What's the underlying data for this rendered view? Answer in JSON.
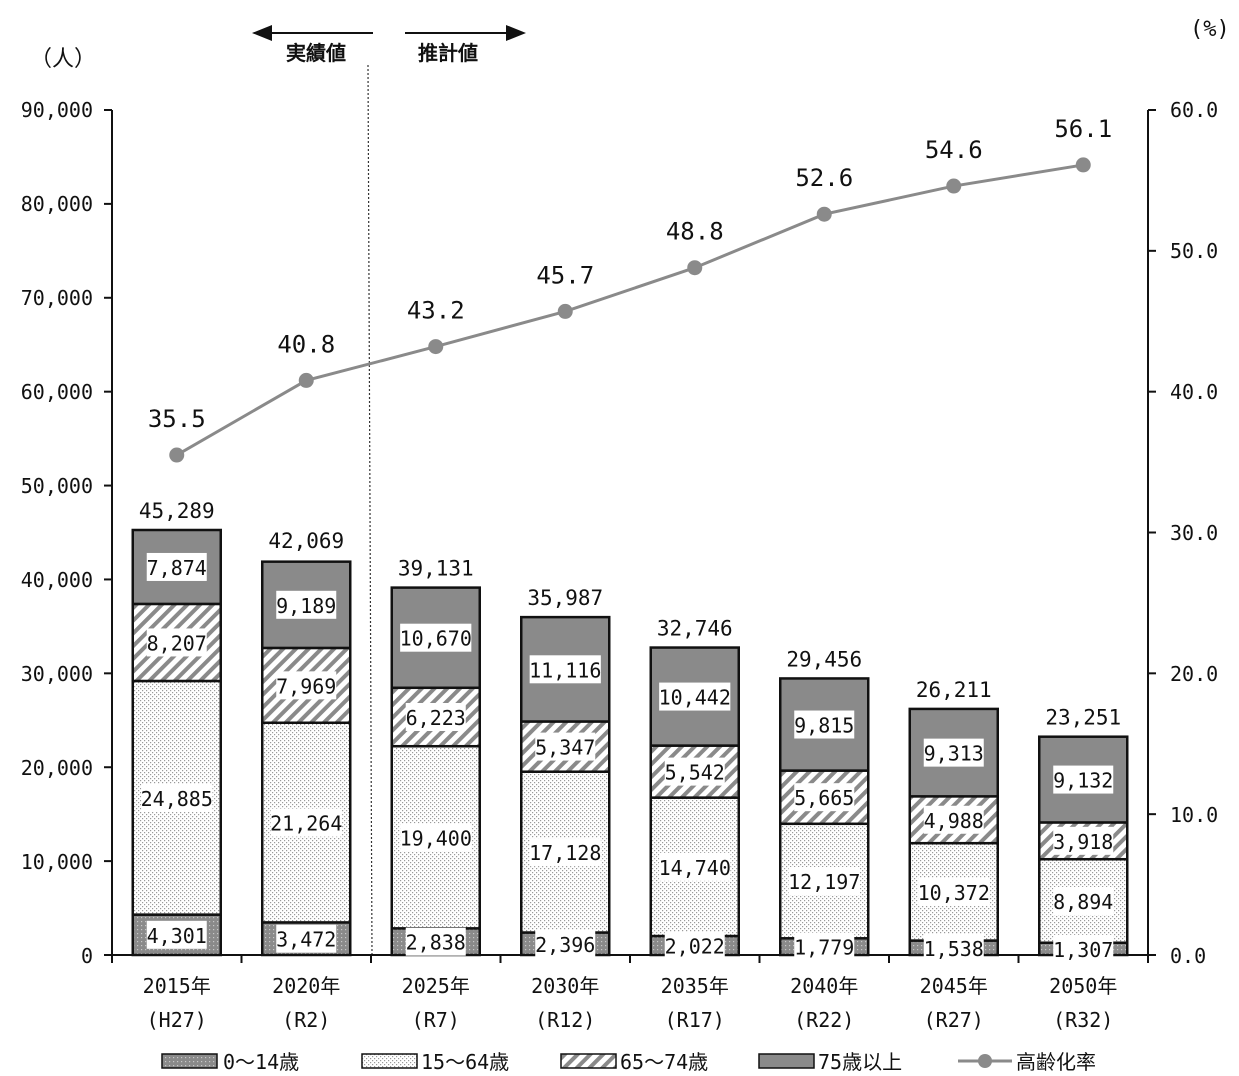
{
  "chart_data": {
    "type": "bar",
    "stacked": true,
    "left_unit": "（人）",
    "right_unit": "(%)",
    "ylim": [
      0,
      90000
    ],
    "y_ticks": [
      "0",
      "10,000",
      "20,000",
      "30,000",
      "40,000",
      "50,000",
      "60,000",
      "70,000",
      "80,000",
      "90,000"
    ],
    "y2lim": [
      0,
      60
    ],
    "y2_ticks": [
      "0.0",
      "10.0",
      "20.0",
      "30.0",
      "40.0",
      "50.0",
      "60.0"
    ],
    "categories": [
      "2015年",
      "2020年",
      "2025年",
      "2030年",
      "2035年",
      "2040年",
      "2045年",
      "2050年"
    ],
    "sub_categories": [
      "(H27)",
      "(R2)",
      "(R7)",
      "(R12)",
      "(R17)",
      "(R22)",
      "(R27)",
      "(R32)"
    ],
    "series": [
      {
        "name": "0～14歳",
        "values": [
          4301,
          3472,
          2838,
          2396,
          2022,
          1779,
          1538,
          1307
        ],
        "labels": [
          "4,301",
          "3,472",
          "2,838",
          "2,396",
          "2,022",
          "1,779",
          "1,538",
          "1,307"
        ]
      },
      {
        "name": "15～64歳",
        "values": [
          24885,
          21264,
          19400,
          17128,
          14740,
          12197,
          10372,
          8894
        ],
        "labels": [
          "24,885",
          "21,264",
          "19,400",
          "17,128",
          "14,740",
          "12,197",
          "10,372",
          "8,894"
        ]
      },
      {
        "name": "65～74歳",
        "values": [
          8207,
          7969,
          6223,
          5347,
          5542,
          5665,
          4988,
          3918
        ],
        "labels": [
          "8,207",
          "7,969",
          "6,223",
          "5,347",
          "5,542",
          "5,665",
          "4,988",
          "3,918"
        ]
      },
      {
        "name": "75歳以上",
        "values": [
          7874,
          9189,
          10670,
          11116,
          10442,
          9815,
          9313,
          9132
        ],
        "labels": [
          "7,874",
          "9,189",
          "10,670",
          "11,116",
          "10,442",
          "9,815",
          "9,313",
          "9,132"
        ]
      }
    ],
    "totals": [
      45289,
      42069,
      39131,
      35987,
      32746,
      29456,
      26211,
      23251
    ],
    "total_labels": [
      "45,289",
      "42,069",
      "39,131",
      "35,987",
      "32,746",
      "29,456",
      "26,211",
      "23,251"
    ],
    "line_series": {
      "name": "高齢化率",
      "values": [
        35.5,
        40.8,
        43.2,
        45.7,
        48.8,
        52.6,
        54.6,
        56.1
      ],
      "labels": [
        "35.5",
        "40.8",
        "43.2",
        "45.7",
        "48.8",
        "52.6",
        "54.6",
        "56.1"
      ]
    },
    "annotations": {
      "actual": "実績値",
      "projected": "推計値"
    },
    "legend_position": "bottom"
  }
}
